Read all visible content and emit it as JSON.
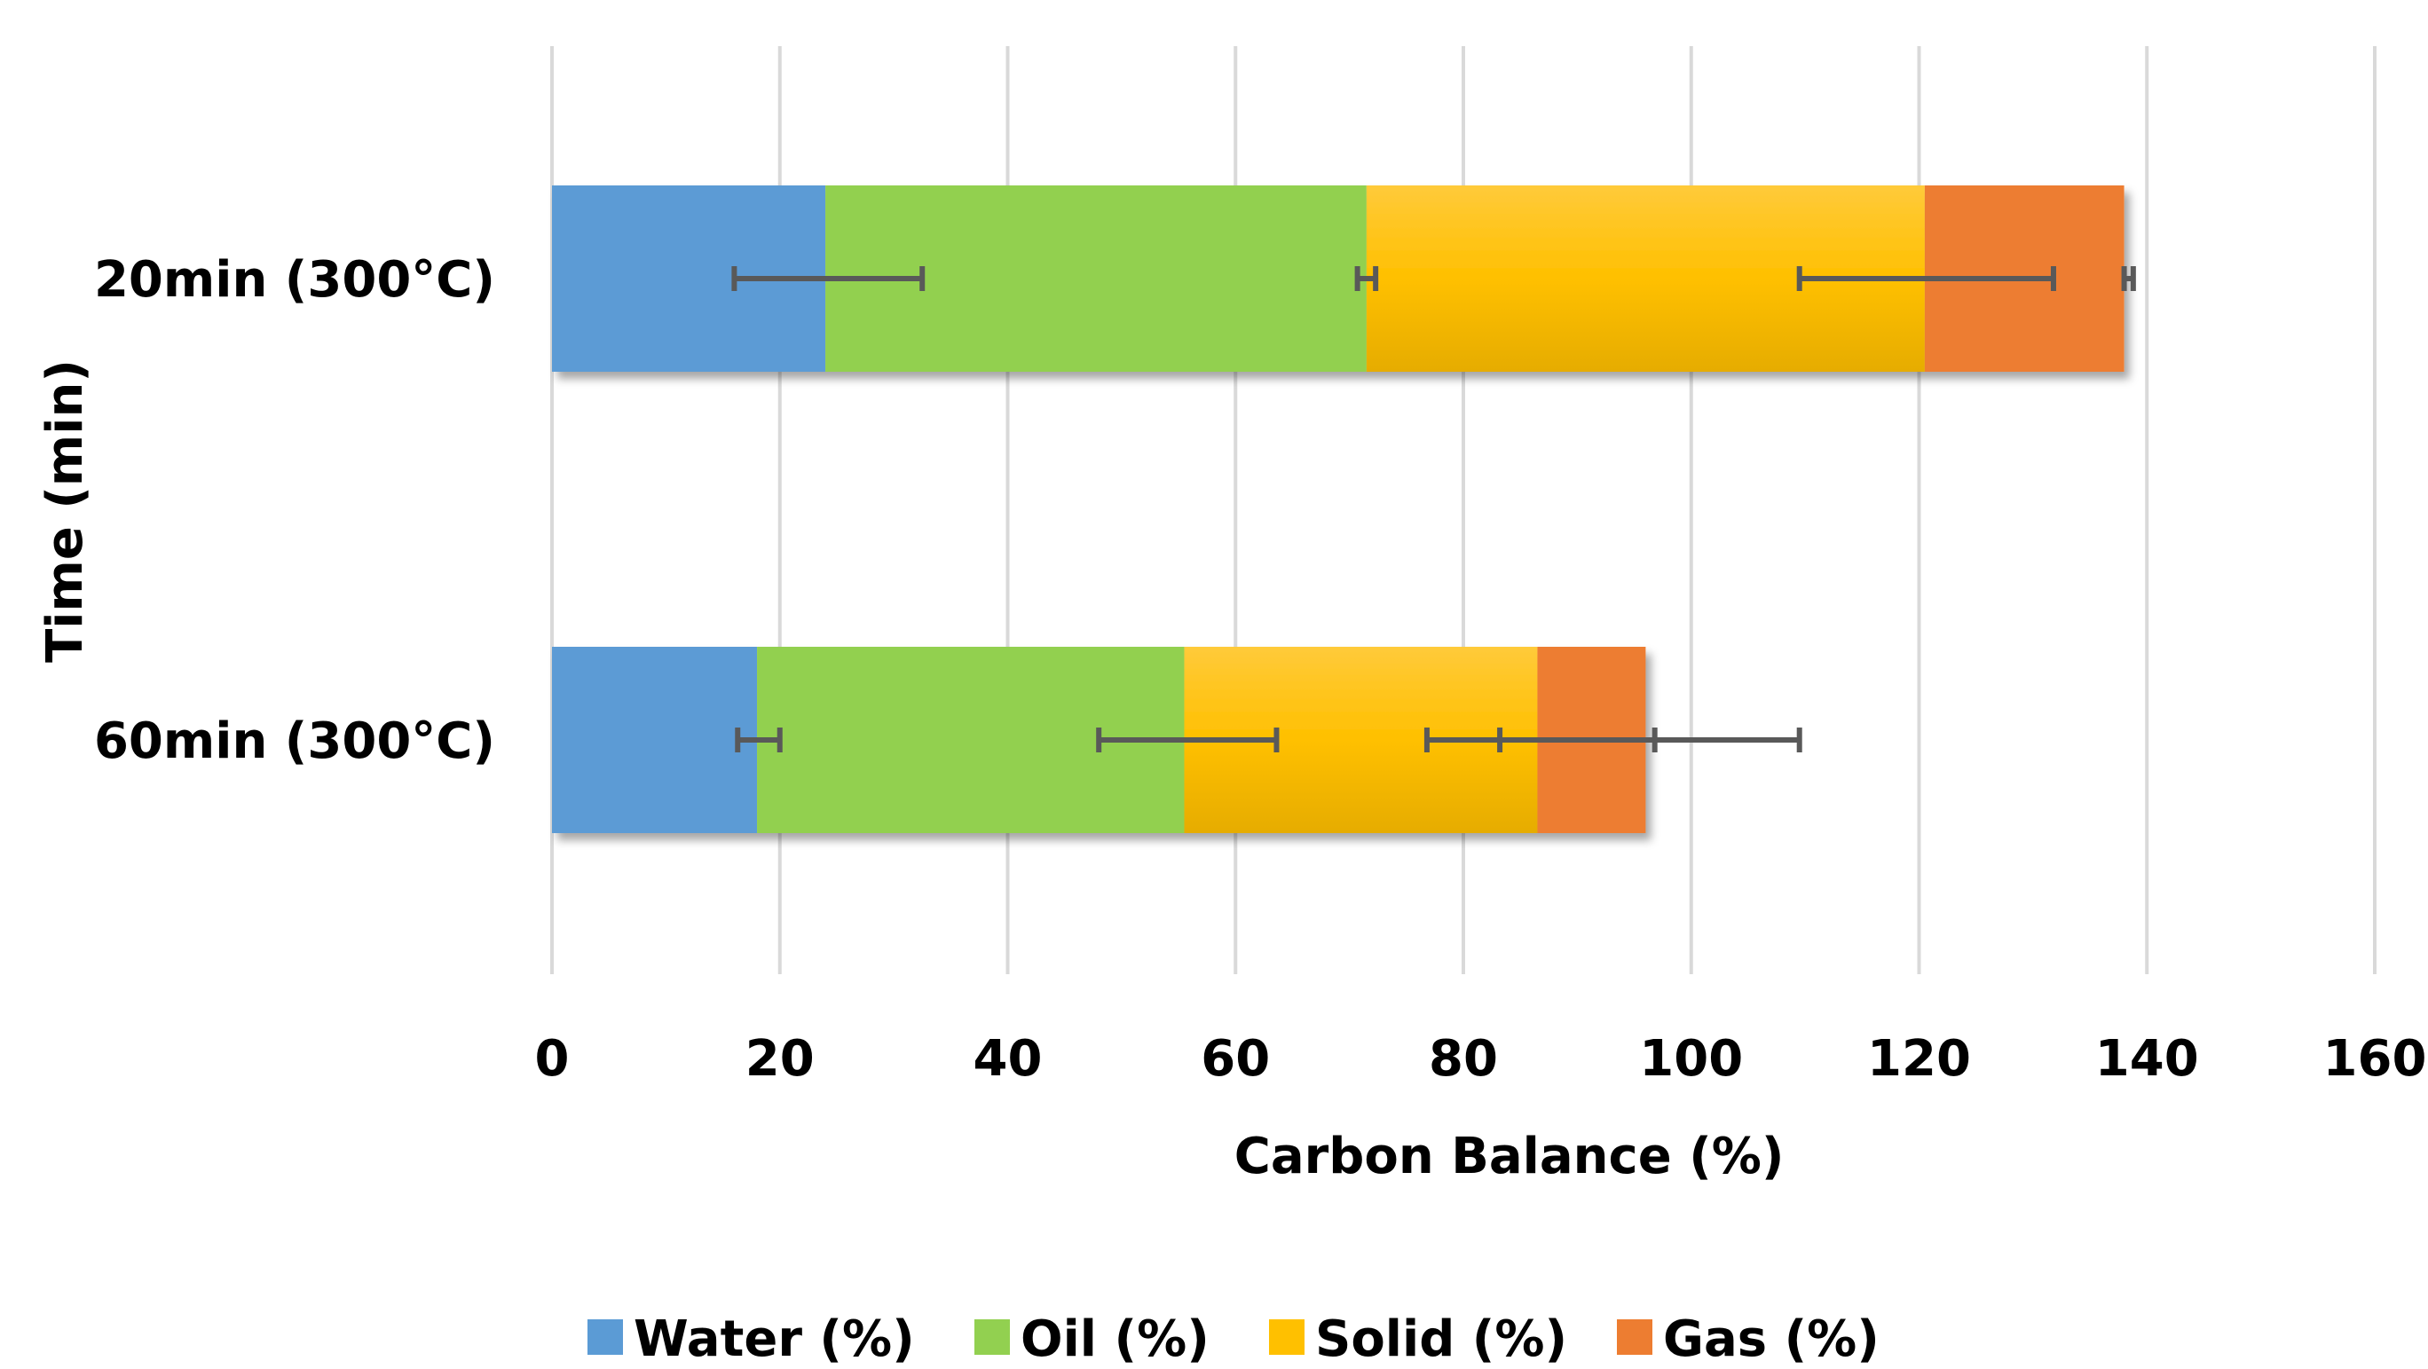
{
  "chart_data": {
    "type": "bar",
    "orientation": "horizontal",
    "stacked": true,
    "categories": [
      "20min (300°C)",
      "60min (300°C)"
    ],
    "series": [
      {
        "name": "Water (%)",
        "values": [
          24.0,
          18.0
        ],
        "error_low": [
          16.0,
          16.3
        ],
        "error_high": [
          32.5,
          20.0
        ],
        "color": "#5B9BD5"
      },
      {
        "name": "Oil (%)",
        "values": [
          47.5,
          37.5
        ],
        "error_low": [
          70.7,
          48.0
        ],
        "error_high": [
          72.3,
          63.6
        ],
        "color": "#92D050"
      },
      {
        "name": "Solid (%)",
        "values": [
          49.0,
          31.0
        ],
        "error_low": [
          109.5,
          76.8
        ],
        "error_high": [
          131.8,
          96.8
        ],
        "color": "#FFC000"
      },
      {
        "name": "Gas (%)",
        "values": [
          17.5,
          9.5
        ],
        "error_low": [
          138.0,
          83.2
        ],
        "error_high": [
          138.8,
          109.5
        ],
        "color": "#ED7D31"
      }
    ],
    "xlabel": "Carbon Balance (%)",
    "ylabel": "Time (min)",
    "xlim": [
      0,
      160
    ],
    "xticks": [
      "0",
      "20",
      "40",
      "60",
      "80",
      "100",
      "120",
      "140",
      "160"
    ],
    "grid": "vertical",
    "legend": "bottom",
    "error_bar_color": "#595959",
    "grid_color": "#D9D9D9"
  }
}
